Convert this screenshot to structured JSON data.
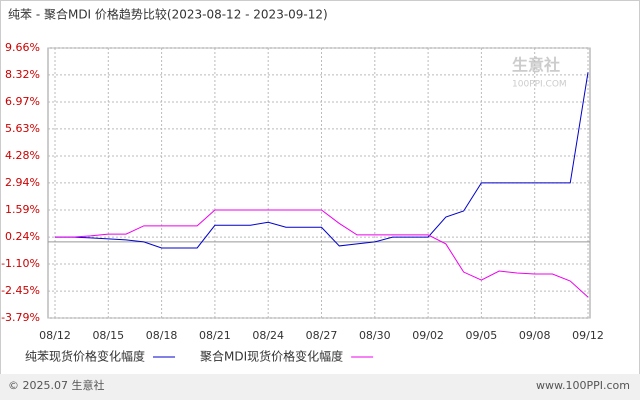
{
  "chart_data": {
    "type": "line",
    "title": "纯苯 - 聚合MDI 价格趋势比较(2023-08-12 - 2023-09-12)",
    "categories": [
      "08/12",
      null,
      null,
      "08/15",
      null,
      null,
      "08/18",
      null,
      null,
      "08/21",
      null,
      null,
      "08/24",
      null,
      null,
      "08/27",
      null,
      null,
      "08/30",
      null,
      null,
      "09/02",
      null,
      null,
      "09/05",
      null,
      null,
      "09/08",
      null,
      null,
      "09/12"
    ],
    "series": [
      {
        "name": "纯苯现货价格变化幅度",
        "color": "#0000cc",
        "values": [
          0.24,
          0.24,
          0.2,
          0.15,
          0.1,
          0.0,
          -0.3,
          -0.3,
          -0.3,
          0.83,
          0.83,
          0.83,
          0.98,
          0.73,
          0.73,
          0.73,
          -0.2,
          -0.1,
          0.0,
          0.24,
          0.24,
          0.24,
          1.24,
          1.54,
          2.94,
          2.94,
          2.94,
          2.94,
          2.94,
          2.94,
          8.45
        ]
      },
      {
        "name": "聚合MDI现货价格变化幅度",
        "color": "#ee00ee",
        "values": [
          0.24,
          0.24,
          0.3,
          0.39,
          0.39,
          0.8,
          0.8,
          0.8,
          0.8,
          1.59,
          1.59,
          1.59,
          1.59,
          1.59,
          1.59,
          1.59,
          0.92,
          0.35,
          0.35,
          0.35,
          0.35,
          0.35,
          -0.1,
          -1.5,
          -1.9,
          -1.45,
          -1.55,
          -1.6,
          -1.6,
          -1.95,
          -2.75
        ]
      }
    ],
    "ylim": [
      -3.79,
      9.66
    ],
    "yticks": [
      {
        "value": 9.66,
        "label": "9.66%"
      },
      {
        "value": 8.32,
        "label": "8.32%"
      },
      {
        "value": 6.97,
        "label": "6.97%"
      },
      {
        "value": 5.63,
        "label": "5.63%"
      },
      {
        "value": 4.28,
        "label": "4.28%"
      },
      {
        "value": 2.94,
        "label": "2.94%"
      },
      {
        "value": 1.59,
        "label": "1.59%"
      },
      {
        "value": 0.24,
        "label": "0.24%"
      },
      {
        "value": -1.1,
        "label": "-1.10%"
      },
      {
        "value": -2.45,
        "label": "-2.45%"
      },
      {
        "value": -3.79,
        "label": "-3.79%"
      }
    ],
    "grid": true,
    "watermark": [
      "生意社",
      "100PPI.COM"
    ],
    "footer": [
      "© 2025.07 生意社",
      "www.100PPI.com"
    ]
  }
}
